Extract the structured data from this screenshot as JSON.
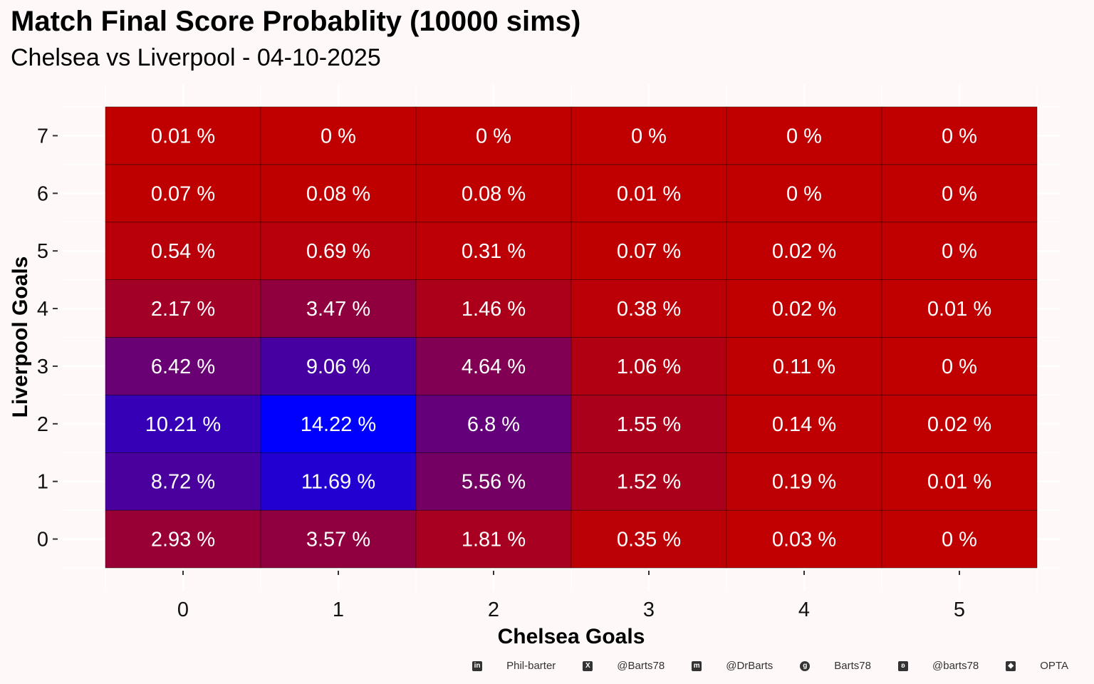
{
  "chart_data": {
    "type": "heatmap",
    "title": "Match Final Score Probablity (10000 sims)",
    "subtitle": "Chelsea vs Liverpool - 04-10-2025",
    "xlabel": "Chelsea Goals",
    "ylabel": "Liverpool Goals",
    "x_categories": [
      "0",
      "1",
      "2",
      "3",
      "4",
      "5"
    ],
    "y_categories": [
      "0",
      "1",
      "2",
      "3",
      "4",
      "5",
      "6",
      "7"
    ],
    "values": [
      [
        2.93,
        3.57,
        1.81,
        0.35,
        0.03,
        0
      ],
      [
        8.72,
        11.69,
        5.56,
        1.52,
        0.19,
        0.01
      ],
      [
        10.21,
        14.22,
        6.8,
        1.55,
        0.14,
        0.02
      ],
      [
        6.42,
        9.06,
        4.64,
        1.06,
        0.11,
        0
      ],
      [
        2.17,
        3.47,
        1.46,
        0.38,
        0.02,
        0.01
      ],
      [
        0.54,
        0.69,
        0.31,
        0.07,
        0.02,
        0
      ],
      [
        0.07,
        0.08,
        0.08,
        0.01,
        0,
        0
      ],
      [
        0.01,
        0,
        0,
        0,
        0,
        0
      ]
    ],
    "value_suffix": " %",
    "fill_low": "#C00000",
    "fill_high": "#0000FF",
    "legend": "none"
  },
  "caption": [
    {
      "icon": "linkedin-icon",
      "text": "Phil-barter"
    },
    {
      "icon": "x-icon",
      "text": "@Barts78"
    },
    {
      "icon": "mastodon-icon",
      "text": "@DrBarts"
    },
    {
      "icon": "github-icon",
      "text": "Barts78"
    },
    {
      "icon": "bluesky-icon",
      "text": "@barts78"
    },
    {
      "icon": "dropbox-icon",
      "text": "OPTA"
    }
  ]
}
